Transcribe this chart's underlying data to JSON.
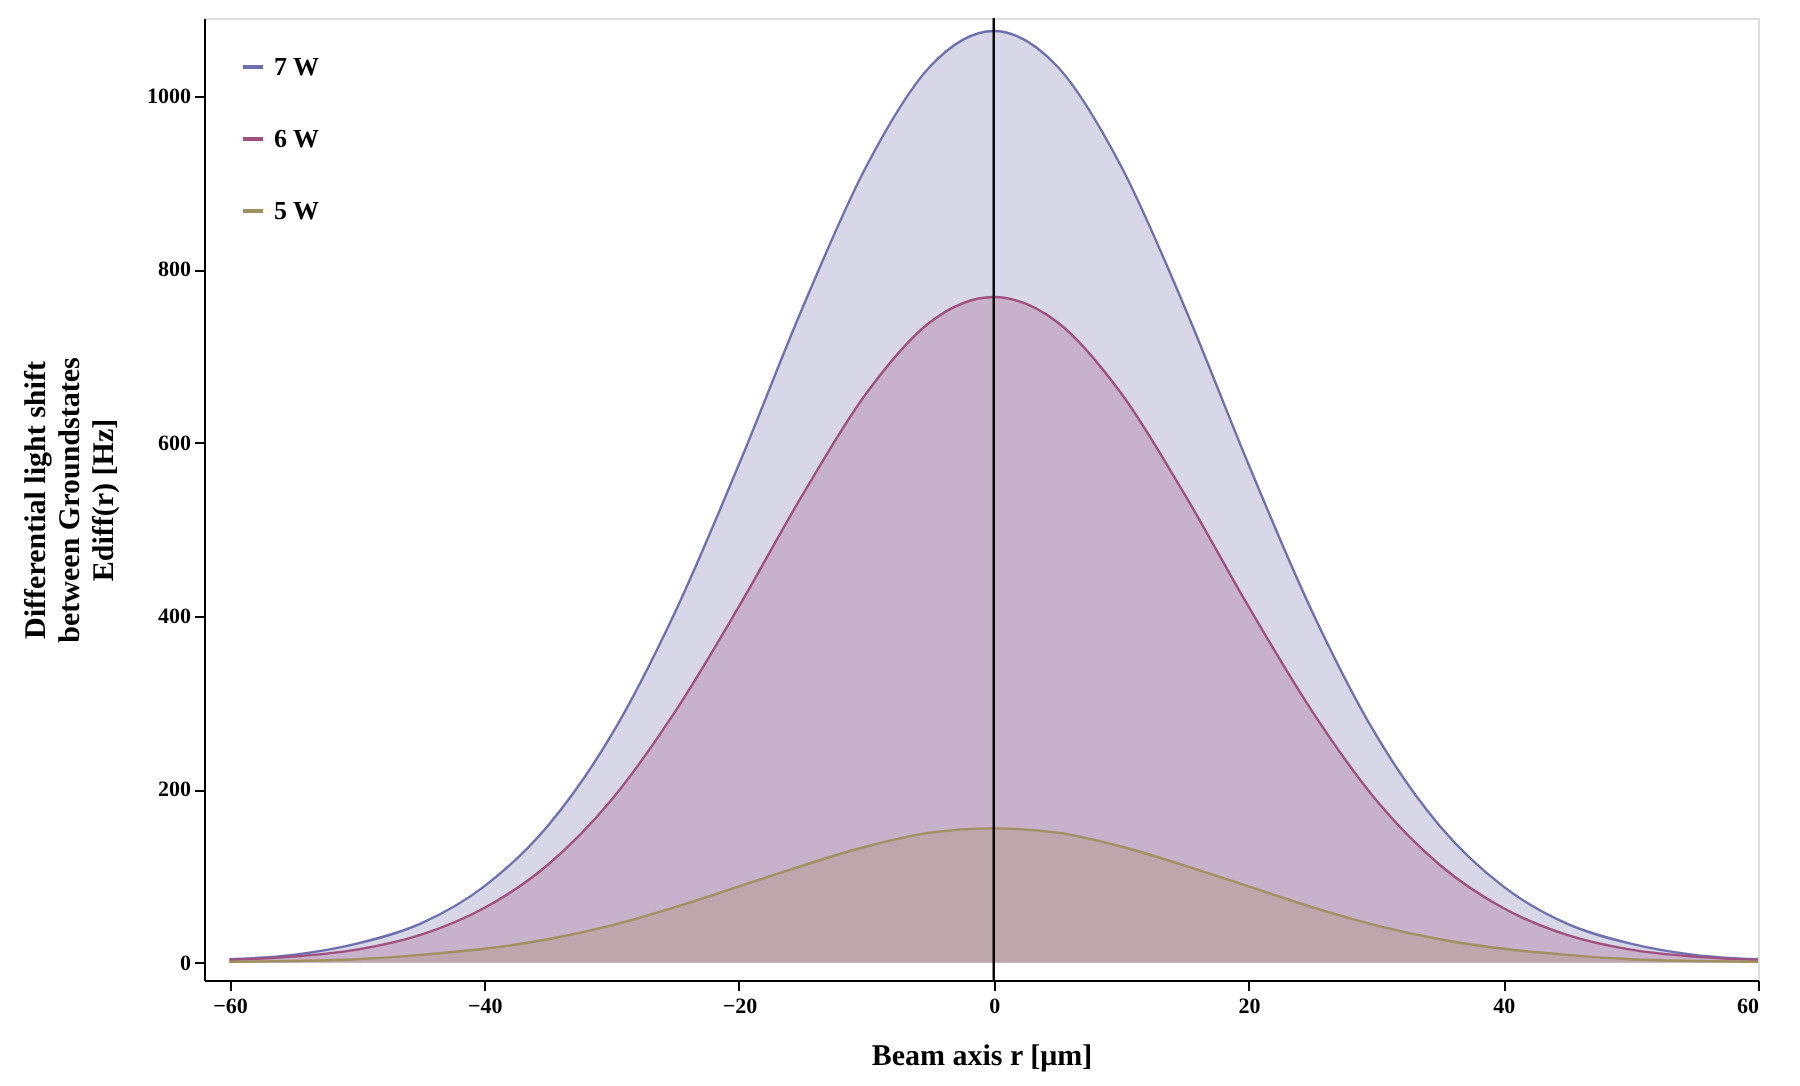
{
  "chart_data": {
    "type": "area",
    "xlabel": "Beam axis r [μm]",
    "ylabel": "Differential light shift\nbetween Groundstates\nEdiff(r)  [Hz]",
    "x": [
      -60,
      -55,
      -50,
      -45,
      -40,
      -35,
      -30,
      -25,
      -20,
      -15,
      -10,
      -5,
      0,
      5,
      10,
      15,
      20,
      25,
      30,
      35,
      40,
      45,
      50,
      55,
      60
    ],
    "series": [
      {
        "name": "7 W",
        "color": "#6f6fae",
        "values": [
          4,
          9,
          22,
          45,
          88,
          158,
          263,
          405,
          575,
          756,
          919,
          1034,
          1075,
          1034,
          919,
          756,
          575,
          405,
          263,
          158,
          88,
          45,
          22,
          9,
          4
        ]
      },
      {
        "name": "6 W",
        "color": "#a0507f",
        "values": [
          3,
          7,
          15,
          32,
          63,
          113,
          188,
          290,
          411,
          540,
          657,
          739,
          768,
          739,
          657,
          540,
          411,
          290,
          188,
          113,
          63,
          32,
          15,
          7,
          3
        ]
      },
      {
        "name": "5 W",
        "color": "#a09060",
        "values": [
          1,
          2,
          4,
          9,
          16,
          27,
          43,
          64,
          88,
          112,
          134,
          150,
          155,
          150,
          134,
          112,
          88,
          64,
          43,
          27,
          16,
          9,
          4,
          2,
          1
        ]
      }
    ],
    "xlim": [
      -62,
      60
    ],
    "ylim": [
      -20,
      1090
    ],
    "xticks": [
      -60,
      -40,
      -20,
      0,
      20,
      40,
      60
    ],
    "yticks": [
      0,
      200,
      400,
      600,
      800,
      1000
    ],
    "ref_lines": [
      {
        "axis": "x",
        "value": 0,
        "color": "#000000"
      }
    ],
    "grid": false,
    "legend": "top left"
  }
}
